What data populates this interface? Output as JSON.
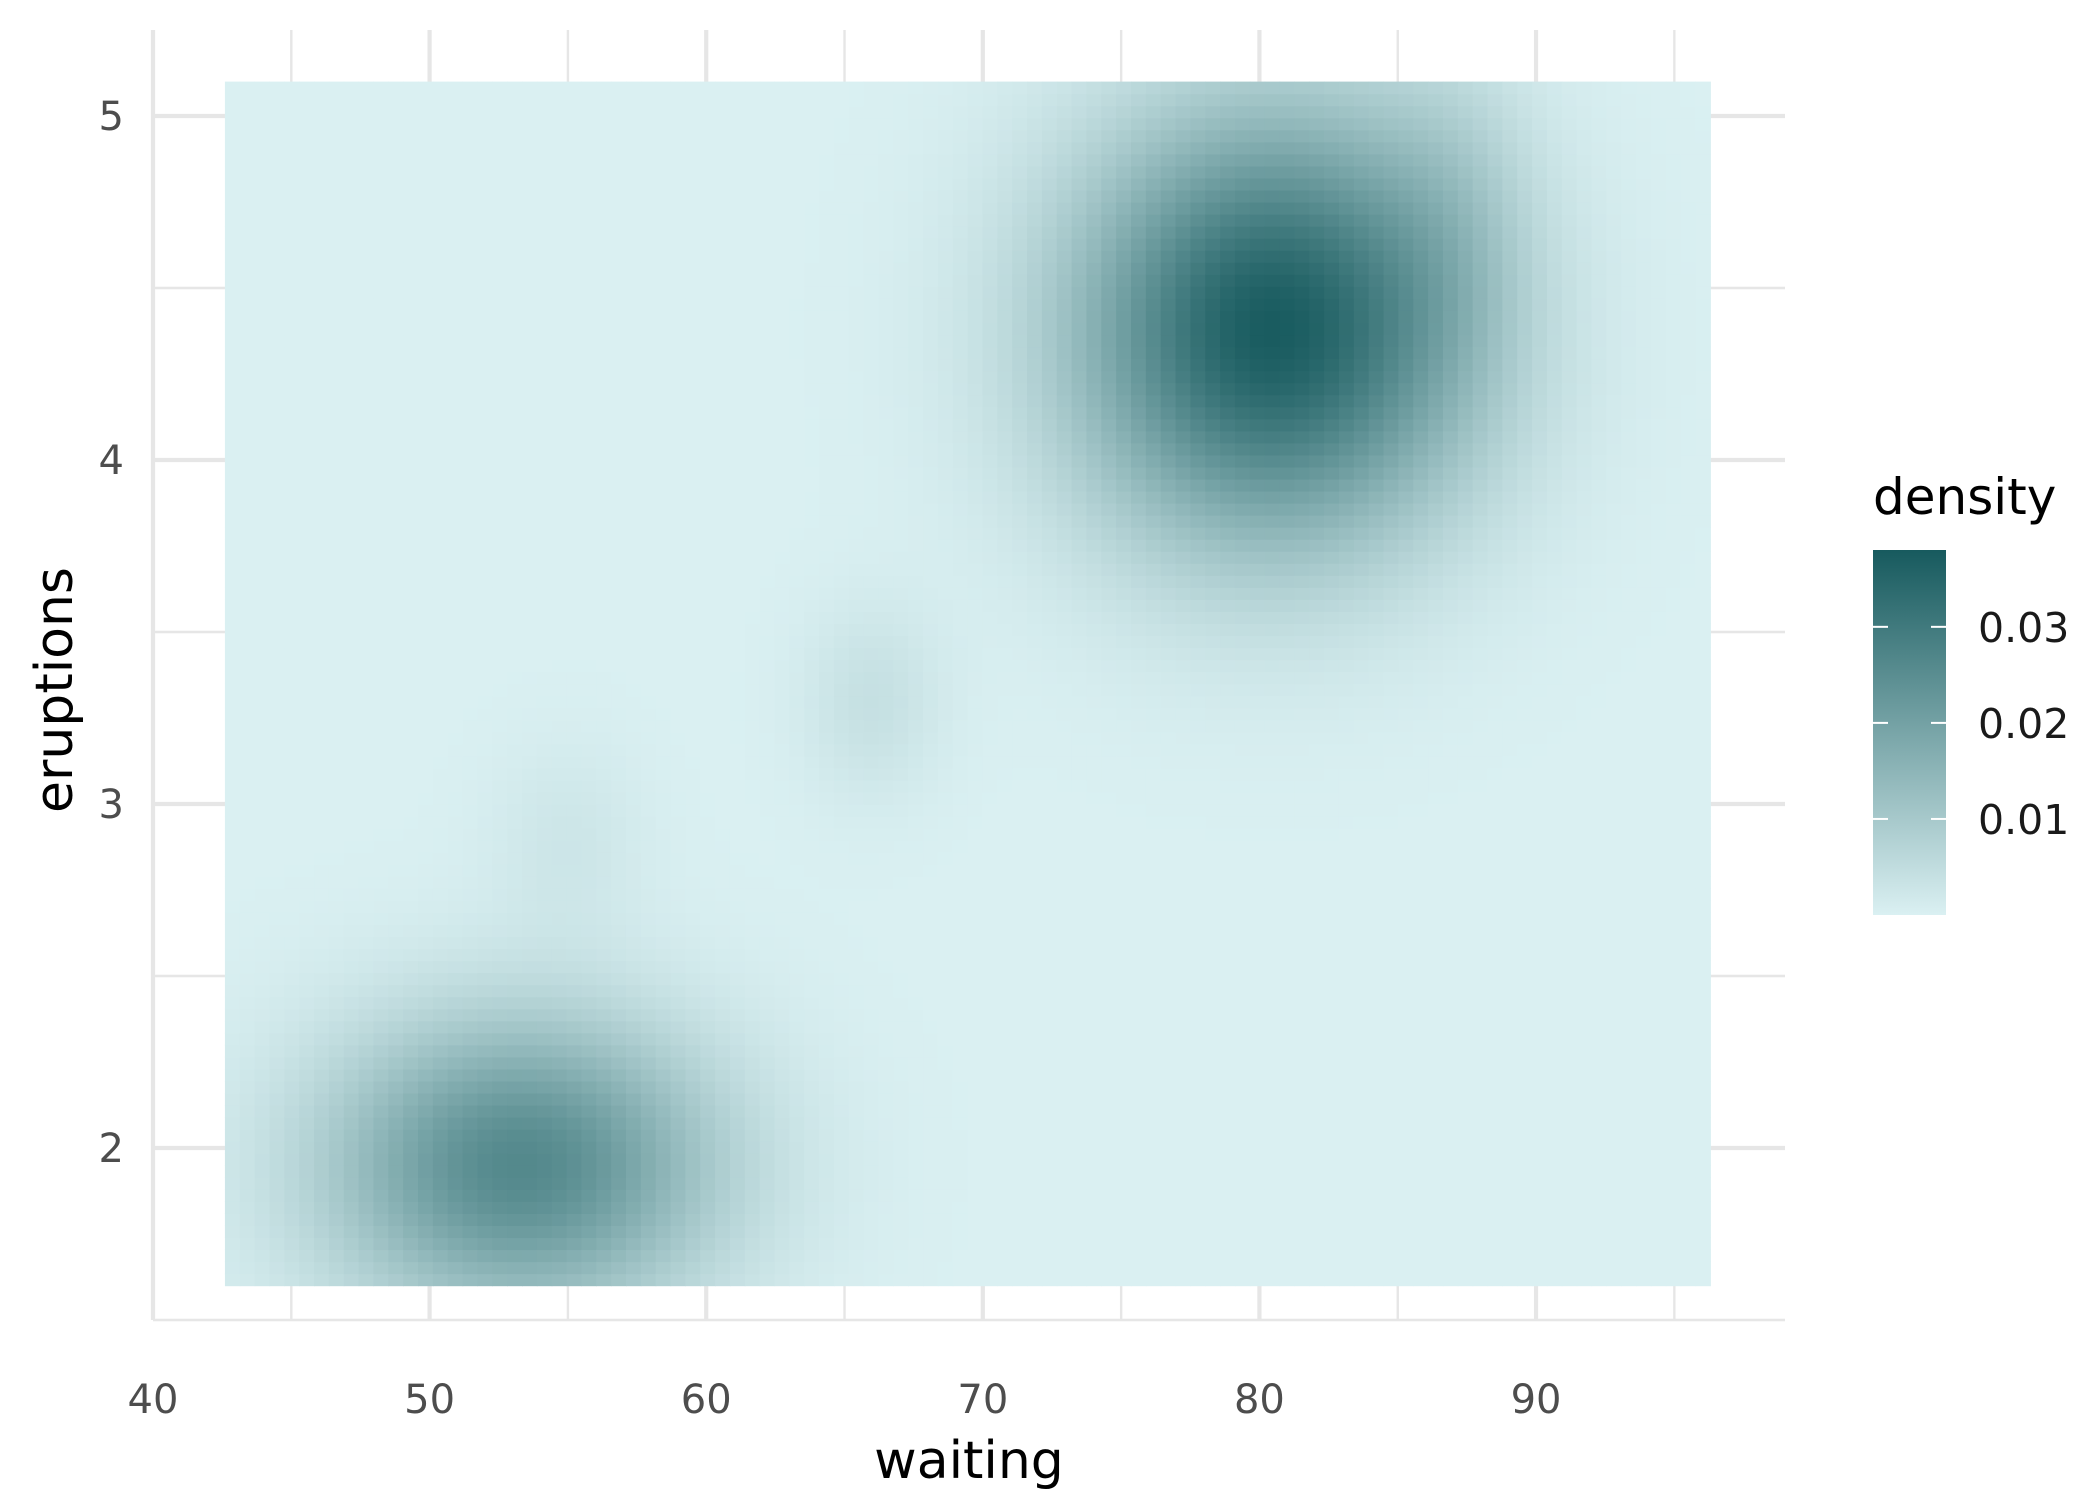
{
  "chart_data": {
    "type": "heatmap",
    "title": "",
    "xlabel": "waiting",
    "ylabel": "eruptions",
    "xlim": [
      40,
      99
    ],
    "ylim": [
      1.5,
      5.25
    ],
    "raster_x_range": [
      42.6,
      96.3
    ],
    "raster_y_range": [
      1.6,
      5.1
    ],
    "x_ticks": [
      40,
      50,
      60,
      70,
      80,
      90
    ],
    "x_tick_labels": [
      "40",
      "50",
      "60",
      "70",
      "80",
      "90"
    ],
    "y_ticks": [
      2,
      3,
      4,
      5
    ],
    "y_tick_labels": [
      "2",
      "3",
      "4",
      "5"
    ],
    "grid": true,
    "legend": {
      "title": "density",
      "placement": "right",
      "range": [
        0,
        0.038
      ],
      "breaks": [
        0.01,
        0.02,
        0.03
      ],
      "break_labels": [
        "0.01",
        "0.02",
        "0.03"
      ]
    },
    "colors": {
      "low": "#daf0f2",
      "high": "#175a5e",
      "grid": "#e6e6e6"
    },
    "density_components": [
      {
        "x": 80.5,
        "y": 4.38,
        "sx": 5.0,
        "sy": 0.43,
        "peak": 0.0375
      },
      {
        "x": 53.3,
        "y": 1.95,
        "sx": 4.9,
        "sy": 0.3,
        "peak": 0.0262
      },
      {
        "x": 66.0,
        "y": 3.3,
        "sx": 1.8,
        "sy": 0.2,
        "peak": 0.004
      },
      {
        "x": 55.0,
        "y": 2.9,
        "sx": 2.0,
        "sy": 0.2,
        "peak": 0.0025
      },
      {
        "x": 87.0,
        "y": 4.7,
        "sx": 2.0,
        "sy": 0.35,
        "peak": 0.004
      }
    ],
    "grid_resolution": 100
  }
}
